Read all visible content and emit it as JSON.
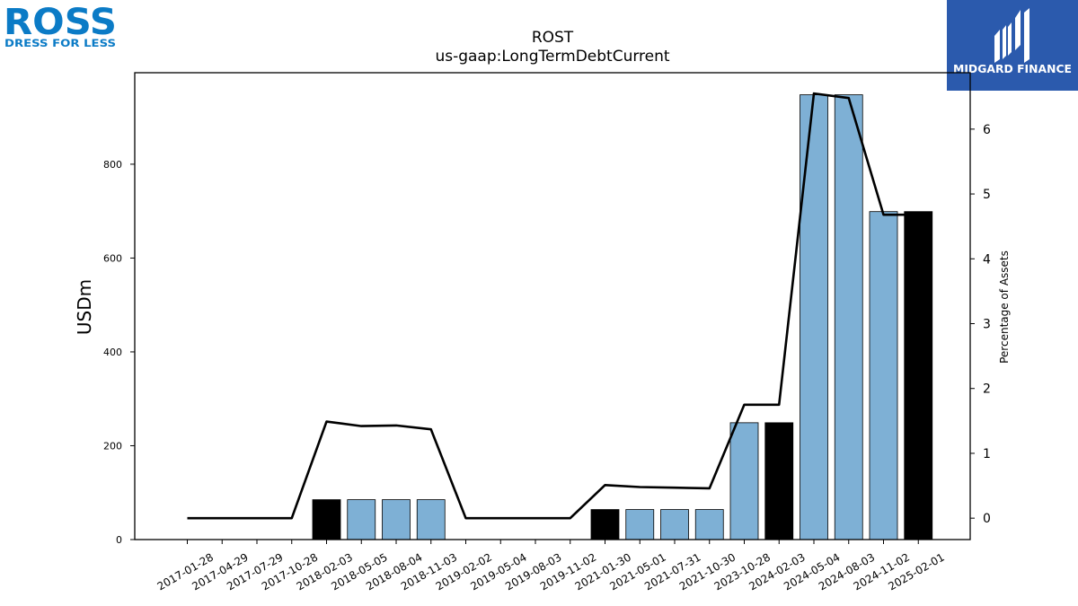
{
  "header": {
    "brand_left": "ROSS",
    "brand_left_tagline": "DRESS FOR LESS",
    "brand_right": "MIDGARD FINANCE"
  },
  "colors": {
    "bar_light": "#7eb0d5",
    "bar_dark": "#000000",
    "line": "#000000",
    "ross_blue": "#0b7bc6",
    "midgard_bg": "#2b5aad"
  },
  "chart_data": {
    "type": "bar",
    "title": "ROST",
    "subtitle": "us-gaap:LongTermDebtCurrent",
    "ylabel": "USDm",
    "y2label": "Percentage of Assets",
    "ylim": [
      0,
      995
    ],
    "y2lim": [
      -0.33,
      6.87
    ],
    "yticks": [
      0,
      200,
      400,
      600,
      800
    ],
    "y2ticks": [
      0,
      1,
      2,
      3,
      4,
      5,
      6
    ],
    "grid": false,
    "categories": [
      "2017-01-28",
      "2017-04-29",
      "2017-07-29",
      "2017-10-28",
      "2018-02-03",
      "2018-05-05",
      "2018-08-04",
      "2018-11-03",
      "2019-02-02",
      "2019-05-04",
      "2019-08-03",
      "2019-11-02",
      "2021-01-30",
      "2021-05-01",
      "2021-07-31",
      "2021-10-30",
      "2023-10-28",
      "2024-02-03",
      "2024-05-04",
      "2024-08-03",
      "2024-11-02",
      "2025-02-01"
    ],
    "series": [
      {
        "type": "bar",
        "values": [
          0,
          0,
          0,
          0,
          85,
          85,
          85,
          85,
          0,
          0,
          0,
          0,
          64,
          64,
          64,
          64,
          249,
          249,
          948,
          948,
          699,
          699
        ],
        "fiscal_year_end": [
          false,
          false,
          false,
          false,
          true,
          false,
          false,
          false,
          false,
          false,
          false,
          false,
          true,
          false,
          false,
          false,
          false,
          true,
          false,
          false,
          false,
          true
        ]
      },
      {
        "type": "line",
        "axis": "right",
        "values": [
          0,
          0,
          0,
          0,
          1.49,
          1.42,
          1.43,
          1.37,
          0,
          0,
          0,
          0,
          0.51,
          0.48,
          0.47,
          0.46,
          1.75,
          1.75,
          6.55,
          6.48,
          4.68,
          4.68
        ]
      }
    ]
  }
}
